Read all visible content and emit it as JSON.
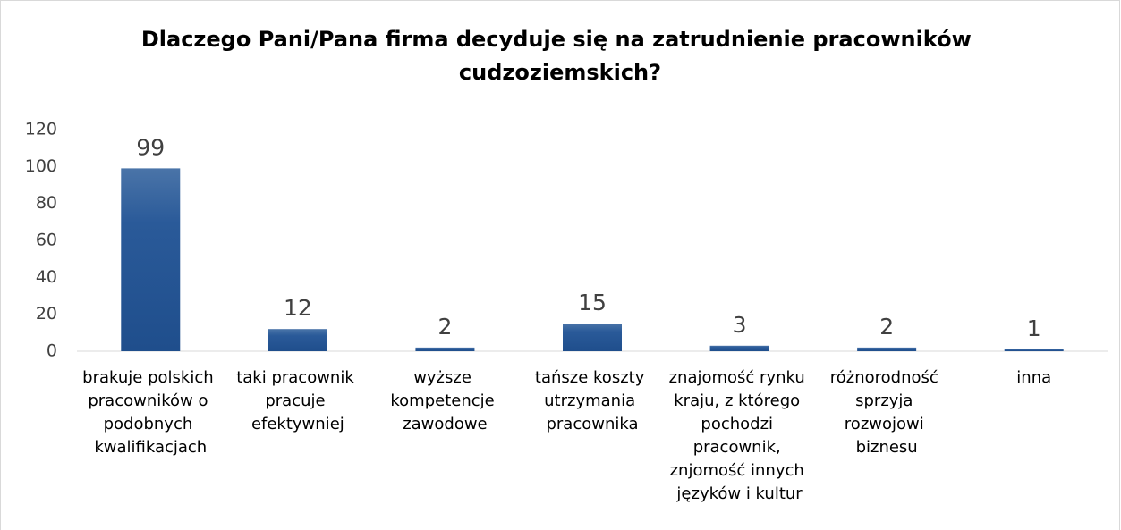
{
  "chart_data": {
    "type": "bar",
    "title": "Dlaczego Pani/Pana firma decyduje się na zatrudnienie pracowników cudzoziemskich?",
    "categories": [
      "brakuje polskich pracowników o podobnych kwalifikacjach",
      "taki pracownik pracuje efektywniej",
      "wyższe kompetencje zawodowe",
      "tańsze koszty utrzymania pracownika",
      "znajomość rynku kraju, z którego pochodzi pracownik, znjomość innych języków i kultur",
      "różnorodność sprzyja rozwojowi biznesu",
      "inna"
    ],
    "values": [
      99,
      12,
      2,
      15,
      3,
      2,
      1
    ],
    "color": "#2a5a99",
    "ylim": [
      0,
      120
    ],
    "yticks": [
      0,
      20,
      40,
      60,
      80,
      100,
      120
    ],
    "grid": false
  }
}
